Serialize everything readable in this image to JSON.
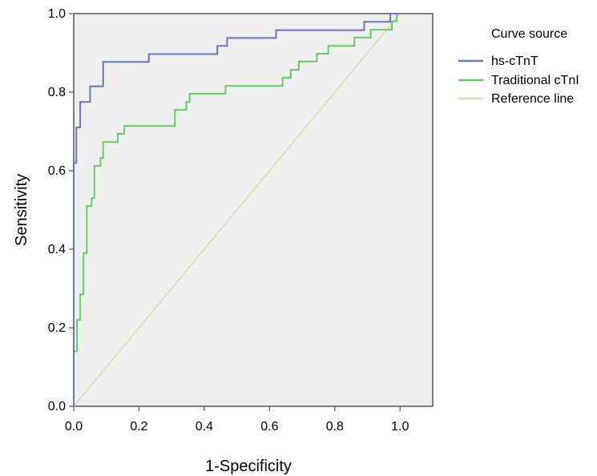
{
  "chart_data": {
    "type": "line",
    "title": "",
    "xlabel": "1-Specificity",
    "ylabel": "Sensitivity",
    "xlim": [
      0,
      1.1
    ],
    "ylim": [
      0,
      1.0
    ],
    "x_ticks": [
      "0.0",
      "0.2",
      "0.4",
      "0.6",
      "0.8",
      "1.0"
    ],
    "y_ticks": [
      "0.0",
      "0.2",
      "0.4",
      "0.6",
      "0.8",
      "1.0"
    ],
    "grid": false,
    "legend_position": "right",
    "legend_title": "Curve source",
    "plot_background": "#efefef",
    "series": [
      {
        "name": "hs-cTnT",
        "color": "#6777c4",
        "points": [
          [
            0,
            0
          ],
          [
            0,
            0.62
          ],
          [
            0.008,
            0.62
          ],
          [
            0.008,
            0.71
          ],
          [
            0.02,
            0.71
          ],
          [
            0.02,
            0.775
          ],
          [
            0.05,
            0.775
          ],
          [
            0.05,
            0.815
          ],
          [
            0.09,
            0.815
          ],
          [
            0.09,
            0.877
          ],
          [
            0.23,
            0.877
          ],
          [
            0.23,
            0.897
          ],
          [
            0.44,
            0.897
          ],
          [
            0.44,
            0.918
          ],
          [
            0.47,
            0.918
          ],
          [
            0.47,
            0.938
          ],
          [
            0.62,
            0.938
          ],
          [
            0.62,
            0.958
          ],
          [
            0.89,
            0.958
          ],
          [
            0.89,
            0.979
          ],
          [
            0.97,
            0.979
          ],
          [
            0.97,
            1.0
          ],
          [
            1.0,
            1.0
          ]
        ]
      },
      {
        "name": "Traditional cTnI",
        "color": "#66cc66",
        "points": [
          [
            0,
            0
          ],
          [
            0,
            0.14
          ],
          [
            0.01,
            0.14
          ],
          [
            0.01,
            0.22
          ],
          [
            0.02,
            0.22
          ],
          [
            0.02,
            0.285
          ],
          [
            0.03,
            0.285
          ],
          [
            0.03,
            0.39
          ],
          [
            0.04,
            0.39
          ],
          [
            0.04,
            0.51
          ],
          [
            0.055,
            0.51
          ],
          [
            0.055,
            0.53
          ],
          [
            0.063,
            0.53
          ],
          [
            0.063,
            0.612
          ],
          [
            0.082,
            0.612
          ],
          [
            0.082,
            0.632
          ],
          [
            0.09,
            0.632
          ],
          [
            0.09,
            0.673
          ],
          [
            0.135,
            0.673
          ],
          [
            0.135,
            0.694
          ],
          [
            0.155,
            0.694
          ],
          [
            0.155,
            0.714
          ],
          [
            0.31,
            0.714
          ],
          [
            0.31,
            0.755
          ],
          [
            0.345,
            0.755
          ],
          [
            0.345,
            0.775
          ],
          [
            0.355,
            0.775
          ],
          [
            0.355,
            0.796
          ],
          [
            0.465,
            0.796
          ],
          [
            0.465,
            0.816
          ],
          [
            0.64,
            0.816
          ],
          [
            0.64,
            0.837
          ],
          [
            0.665,
            0.837
          ],
          [
            0.665,
            0.857
          ],
          [
            0.69,
            0.857
          ],
          [
            0.69,
            0.878
          ],
          [
            0.745,
            0.878
          ],
          [
            0.745,
            0.898
          ],
          [
            0.78,
            0.898
          ],
          [
            0.78,
            0.918
          ],
          [
            0.86,
            0.918
          ],
          [
            0.86,
            0.939
          ],
          [
            0.91,
            0.939
          ],
          [
            0.91,
            0.959
          ],
          [
            0.975,
            0.959
          ],
          [
            0.975,
            0.98
          ],
          [
            0.99,
            0.98
          ],
          [
            0.99,
            1.0
          ],
          [
            1.0,
            1.0
          ]
        ]
      },
      {
        "name": "Reference line",
        "color": "#e0e0b0",
        "points": [
          [
            0,
            0
          ],
          [
            1.0,
            1.0
          ]
        ]
      }
    ]
  }
}
